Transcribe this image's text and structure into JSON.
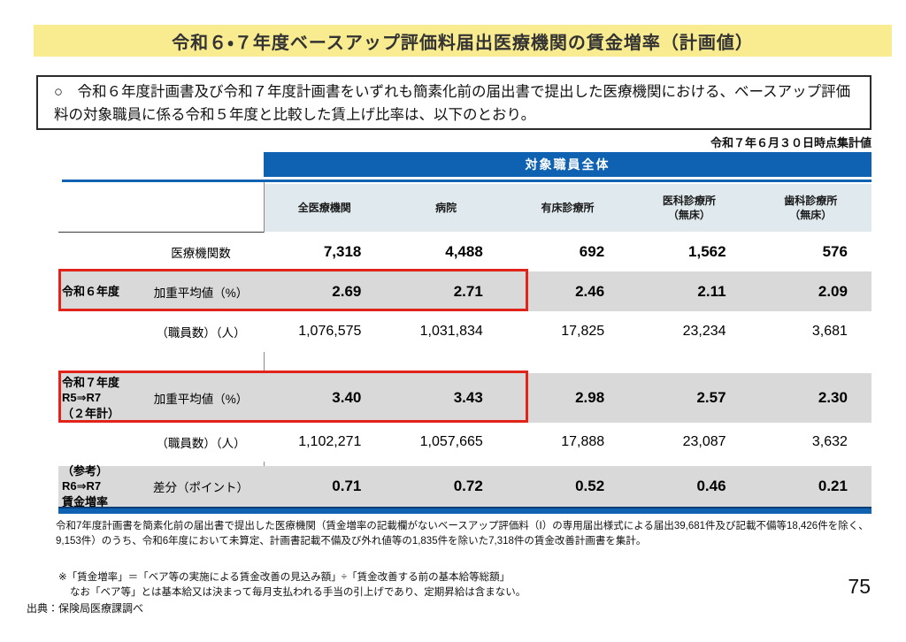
{
  "page": {
    "title": "令和６・７年度ベースアップ評価料届出医療機関の賃金増率（計画値）",
    "intro": "○　令和６年度計画書及び令和７年度計画書をいずれも簡素化前の届出書で提出した医療機関における、ベースアップ評価料の対象職員に係る令和５年度と比較した賃上げ比率は、以下のとおり。",
    "date_note": "令和７年６月３０日時点集計値",
    "page_number": "75",
    "source": "出典：保険局医療課調べ"
  },
  "table": {
    "group_header": "対象職員全体",
    "columns": {
      "all": "全医療機関",
      "hospital": "病院",
      "clinic_beds": "有床診療所",
      "medical_no_beds": "医科診療所\n（無床）",
      "dental_no_beds": "歯科診療所\n（無床）"
    },
    "rows": {
      "facilities": {
        "group": "",
        "metric": "医療機関数",
        "values": [
          "7,318",
          "4,488",
          "692",
          "1,562",
          "576"
        ]
      },
      "r6_avg": {
        "group": "令和６年度",
        "metric": "加重平均値（%）",
        "values": [
          "2.69",
          "2.71",
          "2.46",
          "2.11",
          "2.09"
        ]
      },
      "r6_staff": {
        "group": "",
        "metric": "（職員数）（人）",
        "values": [
          "1,076,575",
          "1,031,834",
          "17,825",
          "23,234",
          "3,681"
        ]
      },
      "r7_avg": {
        "group": "令和７年度\nR5⇒R7\n（２年計）",
        "metric": "加重平均値（%）",
        "values": [
          "3.40",
          "3.43",
          "2.98",
          "2.57",
          "2.30"
        ]
      },
      "r7_staff": {
        "group": "",
        "metric": "（職員数）（人）",
        "values": [
          "1,102,271",
          "1,057,665",
          "17,888",
          "23,087",
          "3,632"
        ]
      },
      "diff": {
        "group": "（参考）\nR6⇒R7\n賃金増率",
        "metric": "差分（ポイント）",
        "values": [
          "0.71",
          "0.72",
          "0.52",
          "0.46",
          "0.21"
        ]
      }
    }
  },
  "footnotes": {
    "note1": "令和7年度計画書を簡素化前の届出書で提出した医療機関（賃金増率の記載欄がないベースアップ評価料（Ⅰ）の専用届出様式による届出39,681件及び記載不備等18,426件を除く、9,153件）のうち、令和6年度において未算定、計画書記載不備及び外れ値等の1,835件を除いた7,318件の賃金改善計画書を集計。",
    "note2_line1": "※「賃金増率」＝「ベア等の実施による賃金改善の見込み額」÷「賃金改善する前の基本給等総額」",
    "note2_line2": "なお「ベア等」とは基本給又は決まって毎月支払われる手当の引上げであり、定期昇給は含まない。"
  },
  "colors": {
    "title_band": "#F9EB8F",
    "header_blue": "#0F62B2",
    "subheader_bg": "#E0EAEE",
    "grey_row": "#D9D9D9",
    "highlight_red": "#E2231A"
  }
}
